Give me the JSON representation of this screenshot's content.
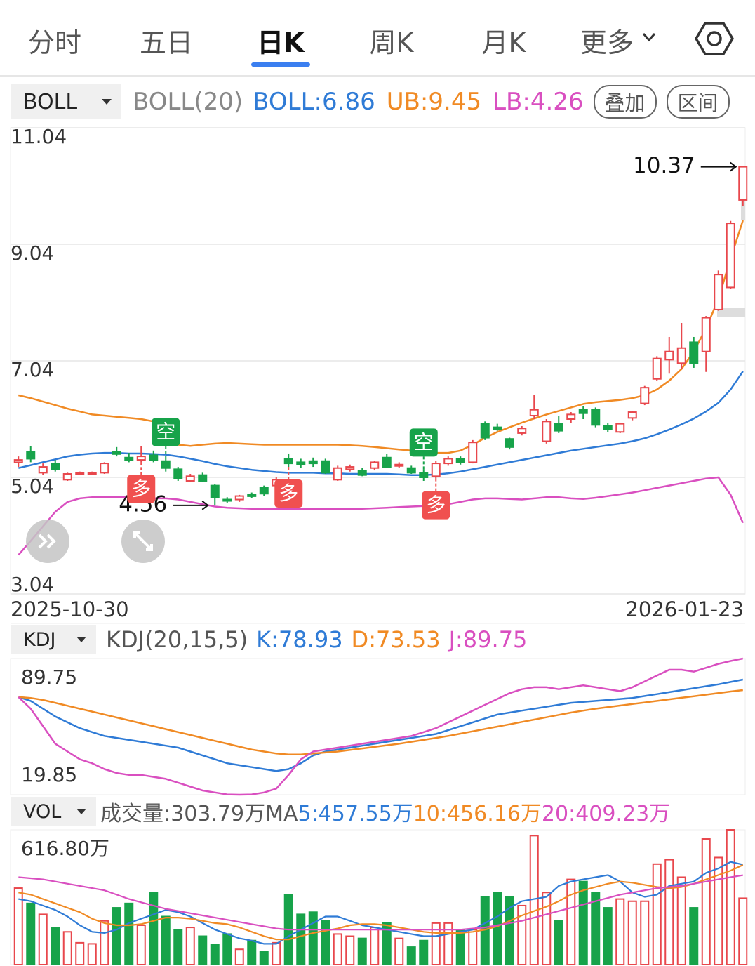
{
  "tabs": [
    "分时",
    "五日",
    "日K",
    "周K",
    "月K",
    "更多"
  ],
  "selected_tab": 2,
  "boll_header": {
    "selector": "BOLL",
    "params": "BOLL(20)",
    "mid": "BOLL:6.86",
    "upper": "UB:9.45",
    "lower": "LB:4.26",
    "buttons": [
      "叠加",
      "区间"
    ]
  },
  "kdj_header": {
    "selector": "KDJ",
    "params": "KDJ(20,15,5)",
    "k": "K:78.93",
    "d": "D:73.53",
    "j": "J:89.75"
  },
  "vol_header": {
    "selector": "VOL",
    "volume": "成交量:303.79万MA",
    "ma5": "5:457.55万",
    "ma10": "10:456.16万",
    "ma20": "20:409.23万"
  },
  "chart_data": [
    {
      "type": "candlestick",
      "up_color": "#e8474c",
      "down_color": "#17a34a",
      "ylim": [
        3.04,
        11.04
      ],
      "yticks": [
        3.04,
        5.04,
        7.04,
        9.04,
        11.04
      ],
      "grid": true,
      "x_labels": [
        "2025-10-30",
        "2026-01-23"
      ],
      "open": [
        5.3,
        5.48,
        5.12,
        5.28,
        5.0,
        5.1,
        5.11,
        5.12,
        5.48,
        5.38,
        5.34,
        5.42,
        5.32,
        5.18,
        4.98,
        5.08,
        4.9,
        4.66,
        4.66,
        4.74,
        4.86,
        4.9,
        5.36,
        5.3,
        5.32,
        5.32,
        5.0,
        5.18,
        5.16,
        5.2,
        5.38,
        5.24,
        5.2,
        5.12,
        5.06,
        5.28,
        5.36,
        5.3,
        5.96,
        5.9,
        5.7,
        5.8,
        6.1,
        5.66,
        5.96,
        6.04,
        6.2,
        6.2,
        5.92,
        5.82,
        6.06,
        6.31,
        6.73,
        7.06,
        7.0,
        7.36,
        7.2,
        7.92,
        8.3,
        9.8
      ],
      "high": [
        5.4,
        5.58,
        5.28,
        5.34,
        5.12,
        5.14,
        5.14,
        5.3,
        5.56,
        5.46,
        5.58,
        5.5,
        5.36,
        5.22,
        5.1,
        5.12,
        4.92,
        4.7,
        4.74,
        4.78,
        4.9,
        5.04,
        5.45,
        5.36,
        5.38,
        5.36,
        5.24,
        5.26,
        5.2,
        5.32,
        5.44,
        5.3,
        5.24,
        5.18,
        5.32,
        5.4,
        5.4,
        5.68,
        6.0,
        5.96,
        5.72,
        5.92,
        6.45,
        6.04,
        6.1,
        6.16,
        6.26,
        6.24,
        5.98,
        5.98,
        6.18,
        6.61,
        7.12,
        7.45,
        7.69,
        7.45,
        7.81,
        8.59,
        9.44,
        10.37
      ],
      "low": [
        5.22,
        5.3,
        5.08,
        5.14,
        4.98,
        5.08,
        5.09,
        5.1,
        5.4,
        5.3,
        5.3,
        5.3,
        5.14,
        4.98,
        4.96,
        4.96,
        4.56,
        4.6,
        4.62,
        4.68,
        4.72,
        4.86,
        5.22,
        5.2,
        5.22,
        5.1,
        4.98,
        5.14,
        5.06,
        5.16,
        5.2,
        5.2,
        5.1,
        4.98,
        5.02,
        5.24,
        5.26,
        5.28,
        5.68,
        5.84,
        5.52,
        5.76,
        6.04,
        5.62,
        5.8,
        5.98,
        6.04,
        5.9,
        5.82,
        5.8,
        6.02,
        6.28,
        6.7,
        6.82,
        6.9,
        6.92,
        6.85,
        7.9,
        8.28,
        9.7
      ],
      "close": [
        5.34,
        5.36,
        5.22,
        5.18,
        5.1,
        5.12,
        5.12,
        5.28,
        5.44,
        5.34,
        5.4,
        5.34,
        5.2,
        5.02,
        5.06,
        4.98,
        4.7,
        4.64,
        4.72,
        4.72,
        4.76,
        5.0,
        5.28,
        5.26,
        5.28,
        5.12,
        5.2,
        5.22,
        5.08,
        5.3,
        5.22,
        5.26,
        5.12,
        5.04,
        5.28,
        5.36,
        5.3,
        5.64,
        5.72,
        5.86,
        5.56,
        5.88,
        6.2,
        6.0,
        5.84,
        6.12,
        6.14,
        5.94,
        5.86,
        5.96,
        6.16,
        6.58,
        7.08,
        7.2,
        7.26,
        7.0,
        7.78,
        8.52,
        9.4,
        10.37
      ],
      "lines": [
        {
          "color": "#2f7bd6",
          "values": [
            5.2,
            5.25,
            5.3,
            5.35,
            5.4,
            5.43,
            5.45,
            5.46,
            5.46,
            5.45,
            5.45,
            5.44,
            5.43,
            5.4,
            5.36,
            5.32,
            5.27,
            5.23,
            5.2,
            5.17,
            5.15,
            5.13,
            5.12,
            5.12,
            5.12,
            5.11,
            5.11,
            5.1,
            5.1,
            5.1,
            5.1,
            5.09,
            5.08,
            5.08,
            5.09,
            5.11,
            5.14,
            5.18,
            5.22,
            5.26,
            5.3,
            5.34,
            5.38,
            5.42,
            5.46,
            5.5,
            5.53,
            5.56,
            5.59,
            5.62,
            5.66,
            5.71,
            5.78,
            5.86,
            5.95,
            6.05,
            6.17,
            6.32,
            6.55,
            6.86
          ]
        },
        {
          "color": "#f08a24",
          "values": [
            6.45,
            6.4,
            6.34,
            6.28,
            6.22,
            6.17,
            6.12,
            6.1,
            6.08,
            6.06,
            6.04,
            6.0,
            5.7,
            5.6,
            5.58,
            5.6,
            5.62,
            5.63,
            5.62,
            5.61,
            5.6,
            5.6,
            5.6,
            5.6,
            5.6,
            5.6,
            5.6,
            5.59,
            5.58,
            5.56,
            5.54,
            5.52,
            5.5,
            5.48,
            5.46,
            5.46,
            5.5,
            5.6,
            5.72,
            5.82,
            5.9,
            5.98,
            6.05,
            6.12,
            6.18,
            6.24,
            6.3,
            6.33,
            6.35,
            6.37,
            6.4,
            6.45,
            6.55,
            6.7,
            6.9,
            7.2,
            7.6,
            8.1,
            8.8,
            9.45
          ]
        },
        {
          "color": "#d94fc0",
          "values": [
            3.71,
            3.95,
            4.2,
            4.45,
            4.62,
            4.68,
            4.7,
            4.7,
            4.7,
            4.7,
            4.69,
            4.68,
            4.68,
            4.66,
            4.62,
            4.58,
            4.54,
            4.52,
            4.51,
            4.5,
            4.5,
            4.5,
            4.5,
            4.5,
            4.5,
            4.5,
            4.5,
            4.5,
            4.5,
            4.51,
            4.52,
            4.53,
            4.54,
            4.55,
            4.56,
            4.58,
            4.62,
            4.66,
            4.68,
            4.68,
            4.67,
            4.66,
            4.68,
            4.7,
            4.7,
            4.68,
            4.67,
            4.69,
            4.72,
            4.75,
            4.78,
            4.82,
            4.86,
            4.9,
            4.94,
            4.98,
            5.02,
            5.04,
            4.74,
            4.26
          ]
        }
      ],
      "high_label": {
        "value": 10.37,
        "index": 59
      },
      "low_label": {
        "value": 4.56,
        "index": 16
      },
      "signals": [
        {
          "label": "多",
          "index": 10,
          "color": "#f0504f"
        },
        {
          "label": "空",
          "index": 12,
          "color": "#17a34a"
        },
        {
          "label": "多",
          "index": 22,
          "color": "#f0504f"
        },
        {
          "label": "空",
          "index": 33,
          "color": "#17a34a"
        },
        {
          "label": "多",
          "index": 34,
          "color": "#f0504f"
        }
      ]
    },
    {
      "type": "line",
      "ylim": [
        19.85,
        89.75
      ],
      "yticks": [
        19.85,
        89.75
      ],
      "series": [
        {
          "color": "#2f7bd6",
          "values": [
            70,
            68,
            64,
            60,
            57,
            54,
            52,
            50,
            49,
            48,
            47,
            46,
            45,
            44,
            42,
            40,
            38,
            36,
            35,
            34,
            33,
            32,
            33,
            36,
            40,
            42,
            43,
            44,
            45,
            46,
            47,
            48,
            49,
            50,
            51,
            53,
            55,
            57,
            59,
            61,
            62,
            63,
            64,
            65,
            66,
            67,
            67.5,
            68,
            68.5,
            69,
            69.5,
            70.5,
            71.5,
            72.5,
            73.5,
            74.5,
            75.5,
            76.5,
            77.7,
            78.93
          ]
        },
        {
          "color": "#f08a24",
          "values": [
            70,
            69.5,
            68.5,
            67,
            65.5,
            64,
            62.5,
            61,
            59.5,
            58,
            56.5,
            55,
            53.5,
            52,
            50.5,
            49,
            47.5,
            46,
            44.5,
            43,
            42,
            41,
            40.5,
            40.5,
            41,
            41.5,
            42,
            42.8,
            43.6,
            44.4,
            45.2,
            46,
            47,
            48,
            49,
            50,
            51.2,
            52.4,
            53.6,
            54.8,
            56,
            57.2,
            58.4,
            59.6,
            60.8,
            62,
            63,
            64,
            64.8,
            65.6,
            66.4,
            67.2,
            68,
            68.8,
            69.6,
            70.4,
            71.2,
            72,
            72.8,
            73.53
          ]
        },
        {
          "color": "#d94fc0",
          "values": [
            70,
            64,
            55,
            46,
            42,
            38,
            36,
            33,
            31,
            30,
            30,
            29,
            28,
            26,
            24,
            22,
            21,
            20,
            19.85,
            20,
            21,
            23,
            30,
            38,
            42,
            43,
            44,
            45,
            46,
            47,
            48,
            49,
            50,
            52,
            54,
            57,
            60,
            63,
            66,
            69,
            72,
            74,
            75,
            75,
            74,
            75,
            76,
            75,
            74,
            73,
            75,
            78,
            81,
            84,
            84,
            83,
            85,
            87,
            88.5,
            89.75
          ]
        }
      ]
    },
    {
      "type": "bar",
      "ylim": [
        0,
        616.8
      ],
      "yticks": [
        {
          "value": 616.8,
          "label": "616.80万"
        }
      ],
      "values": [
        350,
        280,
        230,
        170,
        150,
        100,
        95,
        200,
        260,
        280,
        180,
        330,
        220,
        160,
        170,
        130,
        90,
        140,
        70,
        110,
        60,
        100,
        320,
        230,
        240,
        200,
        140,
        130,
        120,
        170,
        190,
        120,
        80,
        110,
        190,
        190,
        160,
        160,
        310,
        330,
        310,
        270,
        590,
        330,
        200,
        390,
        380,
        330,
        260,
        300,
        290,
        290,
        460,
        480,
        400,
        260,
        575,
        490,
        616.8,
        303.79
      ],
      "series": [
        {
          "color": "#2f7bd6",
          "values": [
            300,
            290,
            270,
            250,
            220,
            180,
            150,
            145,
            160,
            190,
            210,
            230,
            250,
            240,
            220,
            190,
            160,
            140,
            120,
            110,
            95,
            95,
            130,
            160,
            190,
            220,
            220,
            200,
            180,
            170,
            160,
            150,
            140,
            130,
            130,
            140,
            150,
            160,
            190,
            220,
            260,
            290,
            300,
            310,
            360,
            380,
            390,
            400,
            410,
            380,
            330,
            310,
            320,
            360,
            370,
            380,
            420,
            440,
            470,
            457.55
          ]
        },
        {
          "color": "#f08a24",
          "values": [
            330,
            320,
            300,
            280,
            260,
            240,
            210,
            190,
            180,
            180,
            185,
            200,
            215,
            215,
            210,
            200,
            190,
            185,
            170,
            150,
            130,
            115,
            115,
            130,
            145,
            155,
            165,
            180,
            185,
            185,
            180,
            170,
            160,
            150,
            145,
            145,
            145,
            150,
            160,
            175,
            200,
            225,
            245,
            265,
            290,
            320,
            340,
            355,
            370,
            380,
            375,
            365,
            355,
            350,
            355,
            370,
            390,
            410,
            430,
            456.16
          ]
        },
        {
          "color": "#d94fc0",
          "values": [
            400,
            395,
            390,
            380,
            370,
            360,
            350,
            340,
            320,
            300,
            285,
            270,
            255,
            245,
            235,
            225,
            215,
            205,
            195,
            185,
            175,
            165,
            160,
            160,
            160,
            160,
            160,
            160,
            160,
            160,
            160,
            160,
            160,
            160,
            160,
            160,
            160,
            165,
            170,
            180,
            190,
            200,
            215,
            230,
            245,
            260,
            275,
            290,
            305,
            320,
            330,
            340,
            350,
            355,
            360,
            370,
            380,
            390,
            400,
            409.23
          ]
        }
      ]
    }
  ]
}
